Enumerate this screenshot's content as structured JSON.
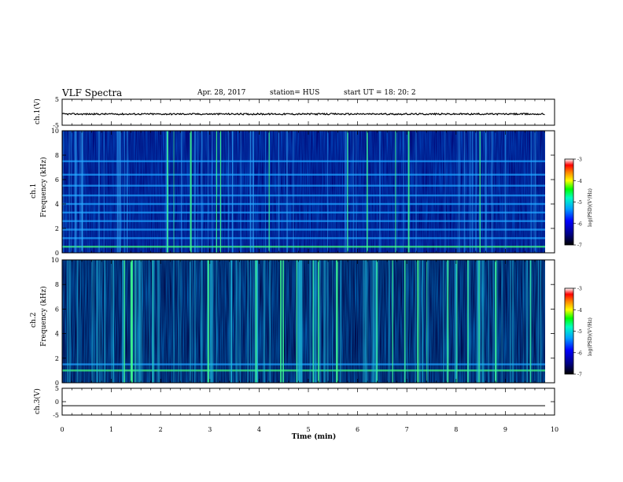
{
  "header": {
    "title": "VLF Spectra",
    "date": "Apr. 28, 2017",
    "station": "station= HUS",
    "start_ut": "start  UT  =    18: 20: 2"
  },
  "colors": {
    "colormap": [
      "#000000",
      "#000080",
      "#0000ff",
      "#00a0ff",
      "#00ffc0",
      "#00ff00",
      "#ffff00",
      "#ff8000",
      "#ff0000",
      "#ffffff"
    ]
  },
  "chart_data": [
    {
      "type": "line",
      "panel": "ch.1 waveform",
      "ylabel": "ch.1(V)",
      "ylim": [
        -5,
        5
      ],
      "yticks": [
        "5",
        "-5"
      ],
      "xlim": [
        0,
        10
      ],
      "description_values": {
        "mean": -0.7,
        "amplitude": 0.3
      }
    },
    {
      "type": "heatmap",
      "panel": "ch.1 spectrogram",
      "ylabel": "ch.1\nFrequency (kHz)",
      "ylim": [
        0,
        10
      ],
      "yticks": [
        "0",
        "2",
        "4",
        "6",
        "8",
        "10"
      ],
      "xlim": [
        0,
        10
      ],
      "colorbar": {
        "label": "log(PSD)(V²/Hz)",
        "range": [
          -7,
          -3
        ],
        "ticks": [
          "-3",
          "-4",
          "-5",
          "-6",
          "-7"
        ]
      },
      "horizontal_lines_khz": [
        0.5,
        1.2,
        1.9,
        2.6,
        3.3,
        4.0,
        4.7,
        5.5,
        6.4,
        7.5
      ]
    },
    {
      "type": "heatmap",
      "panel": "ch.2 spectrogram",
      "ylabel": "ch.2\nFrequency (kHz)",
      "ylim": [
        0,
        10
      ],
      "yticks": [
        "0",
        "2",
        "4",
        "6",
        "8",
        "10"
      ],
      "xlim": [
        0,
        10
      ],
      "colorbar": {
        "label": "log(PSD)(V²/Hz)",
        "range": [
          -7,
          -3
        ],
        "ticks": [
          "-3",
          "-4",
          "-5",
          "-6",
          "-7"
        ]
      },
      "horizontal_lines_khz": [
        1.0,
        1.5
      ]
    },
    {
      "type": "line",
      "panel": "ch.3 waveform",
      "ylabel": "ch.3(V)",
      "ylim": [
        -5,
        5
      ],
      "yticks": [
        "5",
        "0",
        "-5"
      ],
      "xlim": [
        0,
        10
      ],
      "description_values": {
        "constant": -1.5
      }
    }
  ],
  "xaxis": {
    "label": "Time  (min)",
    "ticks": [
      "0",
      "1",
      "2",
      "3",
      "4",
      "5",
      "6",
      "7",
      "8",
      "9",
      "10"
    ]
  }
}
